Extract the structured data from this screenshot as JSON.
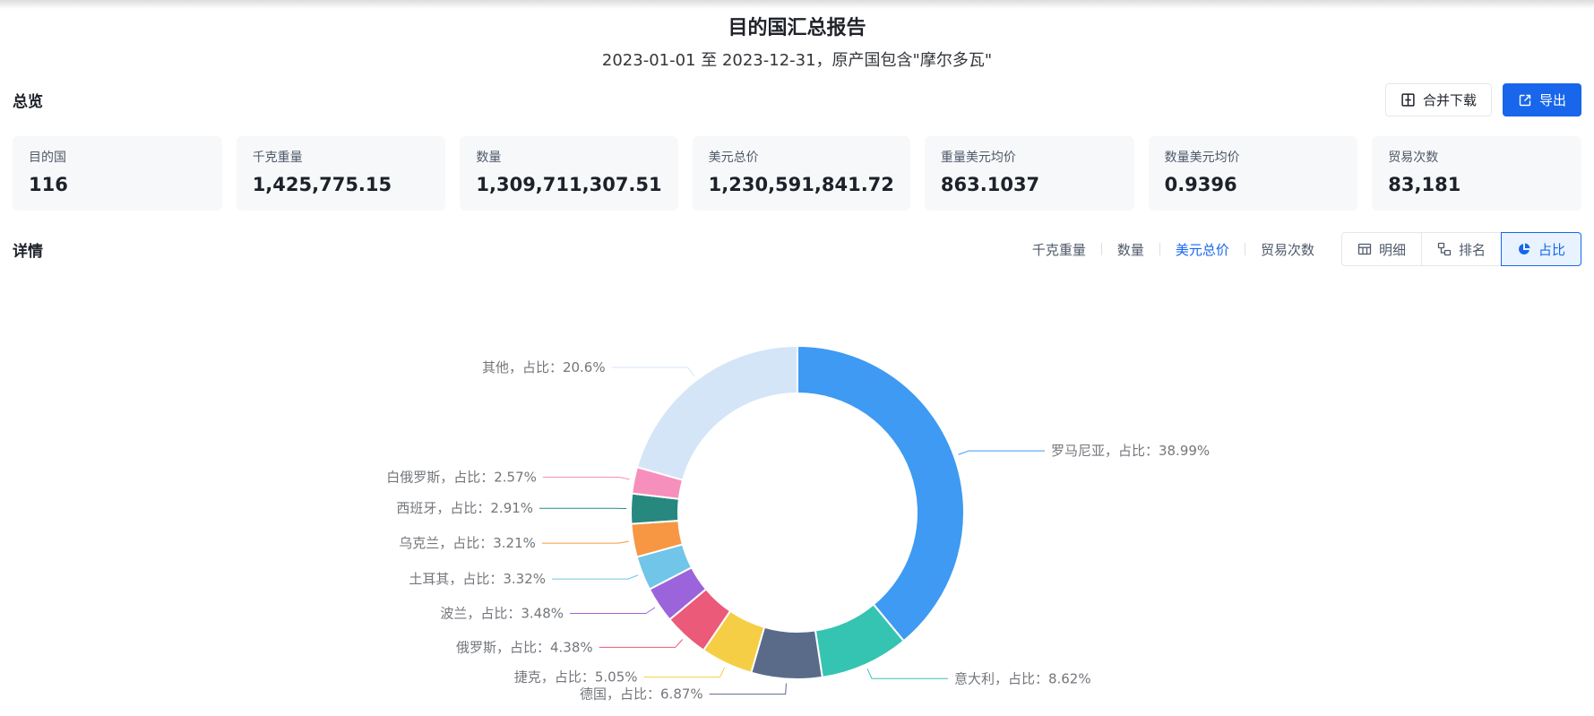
{
  "header": {
    "title": "目的国汇总报告",
    "subtitle": "2023-01-01 至 2023-12-31，原产国包含\"摩尔多瓦\""
  },
  "overview": {
    "heading": "总览",
    "buttons": {
      "merge_download": "合并下载",
      "export": "导出"
    },
    "cards": [
      {
        "label": "目的国",
        "value": "116"
      },
      {
        "label": "千克重量",
        "value": "1,425,775.15"
      },
      {
        "label": "数量",
        "value": "1,309,711,307.51"
      },
      {
        "label": "美元总价",
        "value": "1,230,591,841.72"
      },
      {
        "label": "重量美元均价",
        "value": "863.1037"
      },
      {
        "label": "数量美元均价",
        "value": "0.9396"
      },
      {
        "label": "贸易次数",
        "value": "83,181"
      }
    ]
  },
  "details": {
    "heading": "详情",
    "metric_tabs": [
      {
        "label": "千克重量",
        "active": false
      },
      {
        "label": "数量",
        "active": false
      },
      {
        "label": "美元总价",
        "active": true
      },
      {
        "label": "贸易次数",
        "active": false
      }
    ],
    "view_buttons": [
      {
        "label": "明细",
        "icon": "table-icon",
        "active": false
      },
      {
        "label": "排名",
        "icon": "rank-icon",
        "active": false
      },
      {
        "label": "占比",
        "icon": "pie-icon",
        "active": true
      }
    ]
  },
  "colors": {
    "primary": "#1766ec",
    "primary_light_bg": "#e8f3ff",
    "card_bg": "#f7f8fa",
    "border": "#e5e6eb",
    "text_secondary": "#4e5969",
    "chart_label": "#73767b"
  },
  "chart_data": {
    "type": "pie",
    "donut": true,
    "start_angle": "top",
    "clockwise": true,
    "label_format": "{name}，占比：{value}%",
    "legend": "none",
    "slices": [
      {
        "name": "罗马尼亚",
        "value": 38.99,
        "color": "#3e9af2"
      },
      {
        "name": "意大利",
        "value": 8.62,
        "color": "#35c4b2"
      },
      {
        "name": "德国",
        "value": 6.87,
        "color": "#5a6b8a"
      },
      {
        "name": "捷克",
        "value": 5.05,
        "color": "#f6ce45"
      },
      {
        "name": "俄罗斯",
        "value": 4.38,
        "color": "#eb5a78"
      },
      {
        "name": "波兰",
        "value": 3.48,
        "color": "#9c64da"
      },
      {
        "name": "土耳其",
        "value": 3.32,
        "color": "#70c5e8"
      },
      {
        "name": "乌克兰",
        "value": 3.21,
        "color": "#f79743"
      },
      {
        "name": "西班牙",
        "value": 2.91,
        "color": "#27887f"
      },
      {
        "name": "白俄罗斯",
        "value": 2.57,
        "color": "#f78fbc"
      },
      {
        "name": "其他",
        "value": 20.6,
        "color": "#d4e5f8"
      }
    ]
  }
}
